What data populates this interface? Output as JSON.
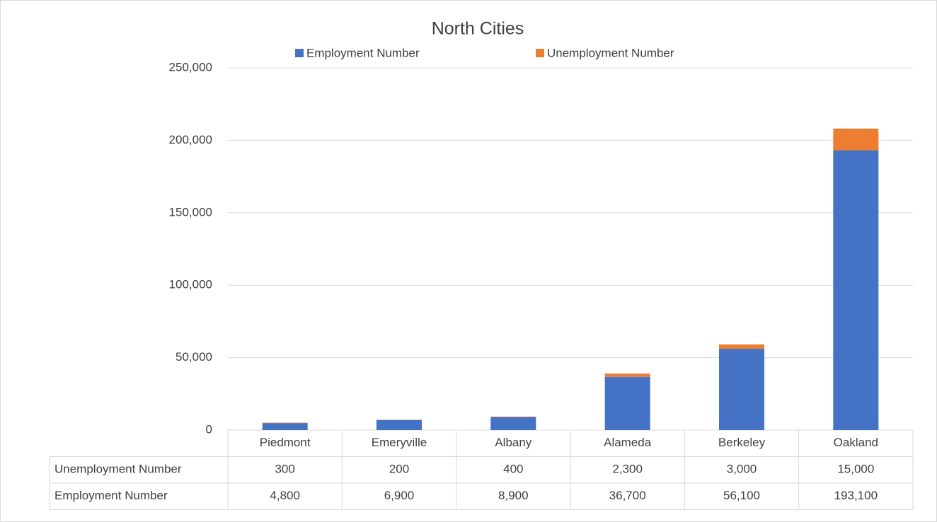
{
  "chart_data": {
    "type": "stacked_bar",
    "title": "North Cities",
    "categories": [
      "Piedmont",
      "Emeryville",
      "Albany",
      "Alameda",
      "Berkeley",
      "Oakland"
    ],
    "series": [
      {
        "name": "Employment Number",
        "color": "#4472c4",
        "values": [
          4800,
          6900,
          8900,
          36700,
          56100,
          193100
        ],
        "value_labels": [
          "4,800",
          "6,900",
          "8,900",
          "36,700",
          "56,100",
          "193,100"
        ]
      },
      {
        "name": "Unemployment Number",
        "color": "#ed7d31",
        "values": [
          300,
          200,
          400,
          2300,
          3000,
          15000
        ],
        "value_labels": [
          "300",
          "200",
          "400",
          "2,300",
          "3,000",
          "15,000"
        ]
      }
    ],
    "ylim": [
      0,
      250000
    ],
    "yticks": [
      0,
      {
        "value": 50000,
        "label": "50,000"
      },
      {
        "value": 100000,
        "label": "100,000"
      },
      {
        "value": 150000,
        "label": "150,000"
      },
      {
        "value": 200000,
        "label": "200,000"
      },
      {
        "value": 250000,
        "label": "250,000"
      }
    ],
    "grid": true,
    "legend": "top",
    "data_table": true
  }
}
